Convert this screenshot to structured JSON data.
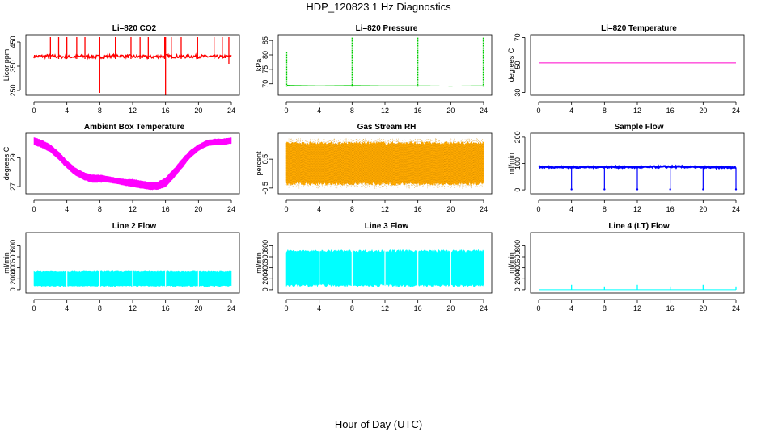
{
  "title": "HDP_120823  1 Hz Diagnostics",
  "xlabel": "Hour of Day (UTC)",
  "chart_data": [
    {
      "type": "line",
      "title": "Li–820 CO2",
      "ylabel": "Licor ppm",
      "color": "#ff0000",
      "xlim": [
        0,
        24
      ],
      "xticks": [
        0,
        4,
        8,
        12,
        16,
        20,
        24
      ],
      "ylim": [
        230,
        480
      ],
      "yticks": [
        250,
        350,
        450
      ],
      "series": [
        {
          "x": [
            0,
            2,
            4,
            6,
            8,
            10,
            12,
            14,
            16,
            18,
            20,
            22,
            24
          ],
          "values": [
            390,
            392,
            388,
            391,
            389,
            393,
            390,
            388,
            392,
            390,
            391,
            389,
            390
          ]
        }
      ],
      "spikes": {
        "x": [
          2,
          3,
          4,
          5.2,
          6.2,
          8,
          9.9,
          11.8,
          12.9,
          13.9,
          15.9,
          16,
          16.7,
          17.9,
          19.9,
          21.9,
          22.9,
          23.7
        ],
        "top": 470,
        "bottom": [
          380,
          380,
          380,
          380,
          380,
          240,
          380,
          380,
          380,
          380,
          380,
          220,
          380,
          380,
          380,
          380,
          380,
          360
        ]
      }
    },
    {
      "type": "line",
      "title": "Li–820 Pressure",
      "ylabel": "kPa",
      "color": "#00cc00",
      "xlim": [
        0,
        24
      ],
      "xticks": [
        0,
        4,
        8,
        12,
        16,
        20,
        24
      ],
      "ylim": [
        66,
        87
      ],
      "yticks": [
        70,
        75,
        80,
        85
      ],
      "series": [
        {
          "x": [
            0.1,
            1,
            4,
            8,
            12,
            16,
            20,
            23.9
          ],
          "values": [
            69.5,
            69.4,
            69.3,
            69.4,
            69.3,
            69.3,
            69.2,
            69.3
          ]
        }
      ],
      "spikes": {
        "x": [
          0.05,
          8,
          16,
          23.95
        ],
        "top": [
          81,
          86,
          86,
          86
        ],
        "bottom": [
          69,
          69,
          69,
          69
        ]
      }
    },
    {
      "type": "line",
      "title": "Li–820 Temperature",
      "ylabel": "degrees C",
      "color": "#ff00cc",
      "xlim": [
        0,
        24
      ],
      "xticks": [
        0,
        4,
        8,
        12,
        16,
        20,
        24
      ],
      "ylim": [
        28,
        72
      ],
      "yticks": [
        30,
        50,
        70
      ],
      "series": [
        {
          "x": [
            0,
            24
          ],
          "values": [
            51.5,
            51.5
          ]
        }
      ]
    },
    {
      "type": "area",
      "title": "Ambient Box Temperature",
      "ylabel": "degrees C",
      "color": "#ff00ff",
      "xlim": [
        0,
        24
      ],
      "xticks": [
        0,
        4,
        8,
        12,
        16,
        20,
        24
      ],
      "ylim": [
        26.5,
        30.7
      ],
      "yticks": [
        27,
        29
      ],
      "series": [
        {
          "x": [
            0,
            1,
            2,
            3,
            4,
            5,
            6,
            7,
            8,
            9,
            10,
            11,
            12,
            13,
            14,
            15,
            16,
            17,
            18,
            19,
            20,
            21,
            22,
            23,
            24
          ],
          "lower": [
            29.9,
            29.7,
            29.4,
            28.9,
            28.3,
            27.8,
            27.5,
            27.3,
            27.3,
            27.3,
            27.2,
            27.1,
            27.0,
            26.9,
            26.8,
            26.8,
            27.0,
            27.6,
            28.3,
            29.0,
            29.5,
            29.8,
            29.9,
            29.9,
            30.0
          ],
          "upper": [
            30.4,
            30.2,
            29.9,
            29.4,
            28.8,
            28.3,
            28.0,
            27.8,
            27.8,
            27.7,
            27.6,
            27.5,
            27.5,
            27.4,
            27.3,
            27.3,
            27.6,
            28.2,
            28.9,
            29.5,
            29.9,
            30.2,
            30.3,
            30.3,
            30.4
          ]
        }
      ]
    },
    {
      "type": "area",
      "title": "Gas Stream RH",
      "ylabel": "percent",
      "color": "#ffaa00",
      "xlim": [
        0,
        24
      ],
      "xticks": [
        0,
        4,
        8,
        12,
        16,
        20,
        24
      ],
      "ylim": [
        -0.7,
        1.4
      ],
      "yticks": [
        -0.5,
        0.5
      ],
      "series": [
        {
          "x": [
            0,
            24
          ],
          "lower": [
            -0.35,
            -0.35
          ],
          "upper": [
            1.05,
            1.05
          ]
        }
      ]
    },
    {
      "type": "line",
      "title": "Sample Flow",
      "ylabel": "ml/min",
      "color": "#0000ff",
      "xlim": [
        0,
        24
      ],
      "xticks": [
        0,
        4,
        8,
        12,
        16,
        20,
        24
      ],
      "ylim": [
        -15,
        215
      ],
      "yticks": [
        0,
        100,
        200
      ],
      "series": [
        {
          "x": [
            0,
            4,
            8,
            12,
            16,
            20,
            24
          ],
          "values": [
            87,
            86,
            87,
            86,
            88,
            86,
            85
          ]
        }
      ],
      "dips": {
        "x": [
          4,
          8,
          12,
          16,
          20,
          24
        ],
        "bottom": 2
      }
    },
    {
      "type": "area",
      "title": "Line 2 Flow",
      "ylabel": "ml/min",
      "color": "#00ffff",
      "xlim": [
        0,
        24
      ],
      "xticks": [
        0,
        4,
        8,
        12,
        16,
        20,
        24
      ],
      "ylim": [
        -60,
        1040
      ],
      "yticks": [
        0,
        200,
        400,
        600,
        800
      ],
      "series": [
        {
          "x": [
            0,
            24
          ],
          "lower": [
            70,
            70
          ],
          "upper": [
            330,
            330
          ]
        }
      ],
      "gaps": [
        4,
        8,
        12,
        16,
        20
      ]
    },
    {
      "type": "area",
      "title": "Line 3 Flow",
      "ylabel": "ml/min",
      "color": "#00ffff",
      "xlim": [
        0,
        24
      ],
      "xticks": [
        0,
        4,
        8,
        12,
        16,
        20,
        24
      ],
      "ylim": [
        -60,
        1040
      ],
      "yticks": [
        0,
        200,
        400,
        600,
        800
      ],
      "series": [
        {
          "x": [
            0,
            24
          ],
          "lower": [
            80,
            80
          ],
          "upper": [
            700,
            700
          ]
        }
      ],
      "gaps": [
        4,
        8,
        12,
        16,
        20
      ]
    },
    {
      "type": "line",
      "title": "Line 4 (LT) Flow",
      "ylabel": "ml/min",
      "color": "#00ffff",
      "xlim": [
        0,
        24
      ],
      "xticks": [
        0,
        4,
        8,
        12,
        16,
        20,
        24
      ],
      "ylim": [
        -60,
        1040
      ],
      "yticks": [
        0,
        200,
        400,
        600,
        800
      ],
      "series": [
        {
          "x": [
            0,
            24
          ],
          "values": [
            0,
            0
          ]
        }
      ],
      "spikes": {
        "x": [
          4,
          8,
          12,
          16,
          20,
          24
        ],
        "top": [
          90,
          60,
          90,
          60,
          90,
          60
        ],
        "bottom": [
          0,
          0,
          0,
          0,
          0,
          0
        ]
      }
    }
  ]
}
